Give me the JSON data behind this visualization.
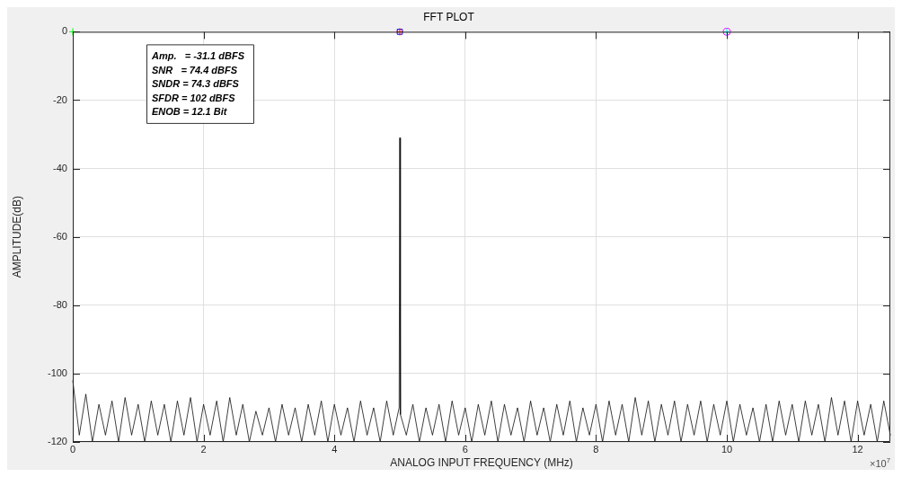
{
  "chart_data": {
    "type": "line",
    "title": "FFT PLOT",
    "xlabel": "ANALOG INPUT FREQUENCY (MHz)",
    "ylabel": "AMPLITUDE(dB)",
    "annotations": [
      "Amp.   = -31.1 dBFS",
      "SNR   = 74.4 dBFS",
      "SNDR = 74.3 dBFS",
      "SFDR = 102 dBFS",
      "ENOB = 12.1 Bit",
      "×10$^{7}$"
    ],
    "xlim": [
      0,
      12.5
    ],
    "xticks": [
      0,
      2,
      4,
      6,
      8,
      10,
      12
    ],
    "ylim": [
      -120,
      0
    ],
    "yticks": [
      -120,
      -100,
      -80,
      -60,
      -40,
      -20,
      0
    ],
    "grid": true,
    "legend": false,
    "series": [
      {
        "color": "#000000",
        "marker": "none",
        "line_style": "solid",
        "x": [
          0,
          0.1,
          0.2,
          0.3,
          0.4,
          0.5,
          0.6,
          0.7,
          0.8,
          0.9,
          1.0,
          1.1,
          1.2,
          1.3,
          1.4,
          1.5,
          1.6,
          1.7,
          1.8,
          1.9,
          2.0,
          2.1,
          2.2,
          2.3,
          2.4,
          2.5,
          2.6,
          2.7,
          2.8,
          2.9,
          3.0,
          3.1,
          3.2,
          3.3,
          3.4,
          3.5,
          3.6,
          3.7,
          3.8,
          3.9,
          4.0,
          4.1,
          4.2,
          4.3,
          4.4,
          4.5,
          4.6,
          4.7,
          4.8,
          4.9,
          4.99,
          5.0,
          5.01,
          5.1,
          5.2,
          5.3,
          5.4,
          5.5,
          5.6,
          5.7,
          5.8,
          5.9,
          6.0,
          6.1,
          6.2,
          6.3,
          6.4,
          6.5,
          6.6,
          6.7,
          6.8,
          6.9,
          7.0,
          7.1,
          7.2,
          7.3,
          7.4,
          7.5,
          7.6,
          7.7,
          7.8,
          7.9,
          8.0,
          8.1,
          8.2,
          8.3,
          8.4,
          8.5,
          8.6,
          8.7,
          8.8,
          8.9,
          9.0,
          9.1,
          9.2,
          9.3,
          9.4,
          9.5,
          9.6,
          9.7,
          9.8,
          9.9,
          10.0,
          10.1,
          10.2,
          10.3,
          10.4,
          10.5,
          10.6,
          10.7,
          10.8,
          10.9,
          11.0,
          11.1,
          11.2,
          11.3,
          11.4,
          11.5,
          11.6,
          11.7,
          11.8,
          11.9,
          12.0,
          12.1,
          12.2,
          12.3,
          12.4,
          12.5
        ],
        "values": [
          -102,
          -118,
          -106,
          -120,
          -109,
          -118,
          -108,
          -120,
          -107,
          -118,
          -109,
          -120,
          -108,
          -118,
          -109,
          -120,
          -108,
          -118,
          -107,
          -120,
          -109,
          -118,
          -108,
          -120,
          -107,
          -118,
          -109,
          -120,
          -111,
          -118,
          -110,
          -120,
          -109,
          -118,
          -110,
          -120,
          -109,
          -118,
          -108,
          -120,
          -109,
          -118,
          -110,
          -120,
          -108,
          -118,
          -110,
          -120,
          -108,
          -118,
          -110,
          -31,
          -112,
          -118,
          -109,
          -120,
          -110,
          -118,
          -109,
          -120,
          -108,
          -118,
          -110,
          -120,
          -109,
          -118,
          -108,
          -120,
          -109,
          -118,
          -110,
          -120,
          -108,
          -118,
          -110,
          -120,
          -109,
          -118,
          -108,
          -120,
          -110,
          -118,
          -109,
          -120,
          -108,
          -118,
          -109,
          -120,
          -107,
          -118,
          -108,
          -120,
          -109,
          -118,
          -108,
          -120,
          -109,
          -118,
          -108,
          -120,
          -109,
          -118,
          -108,
          -120,
          -109,
          -118,
          -110,
          -120,
          -109,
          -120,
          -108,
          -118,
          -109,
          -120,
          -108,
          -118,
          -109,
          -120,
          -107,
          -118,
          -108,
          -120,
          -108,
          -118,
          -109,
          -120,
          -108,
          -118
        ]
      },
      {
        "type": "scatter",
        "color": "#00ff00",
        "marker": "cross",
        "x": [
          0
        ],
        "values": [
          0
        ]
      },
      {
        "type": "scatter",
        "color": "#ff0000",
        "marker": "cross",
        "x": [
          5
        ],
        "values": [
          0
        ]
      },
      {
        "type": "scatter",
        "color": "#0000ff",
        "marker": "square",
        "x": [
          5
        ],
        "values": [
          0
        ]
      },
      {
        "type": "scatter",
        "color": "#00ffff",
        "marker": "cross",
        "x": [
          10
        ],
        "values": [
          0
        ]
      },
      {
        "type": "scatter",
        "color": "#ff00ff",
        "marker": "circle",
        "x": [
          10
        ],
        "values": [
          0
        ]
      }
    ]
  }
}
